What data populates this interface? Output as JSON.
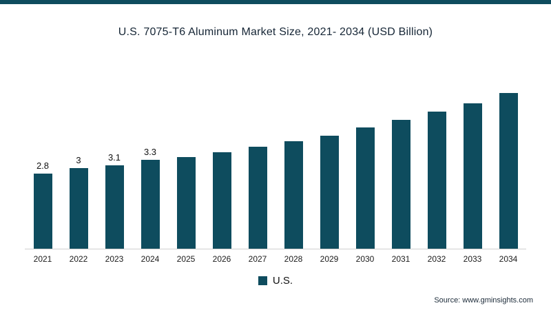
{
  "page": {
    "accent_color": "#0e4c5e"
  },
  "chart_data": {
    "type": "bar",
    "title": "U.S.  7075-T6 Aluminum Market Size, 2021- 2034 (USD Billion)",
    "categories": [
      "2021",
      "2022",
      "2023",
      "2024",
      "2025",
      "2026",
      "2027",
      "2028",
      "2029",
      "2030",
      "2031",
      "2032",
      "2033",
      "2034"
    ],
    "values": [
      2.8,
      3,
      3.1,
      3.3,
      3.4,
      3.6,
      3.8,
      4.0,
      4.2,
      4.5,
      4.8,
      5.1,
      5.4,
      5.8
    ],
    "data_labels": [
      "2.8",
      "3",
      "3.1",
      "3.3",
      "",
      "",
      "",
      "",
      "",
      "",
      "",
      "",
      "",
      ""
    ],
    "xlabel": "",
    "ylabel": "",
    "ylim": [
      0,
      6.2
    ],
    "grid": false,
    "bar_color": "#0e4c5e",
    "axis_line_color": "#cfcfcf",
    "legend_position": "bottom",
    "legend": [
      {
        "label": "U.S.",
        "color": "#0e4c5e"
      }
    ]
  },
  "footer": {
    "source": "Source: www.gminsights.com"
  }
}
